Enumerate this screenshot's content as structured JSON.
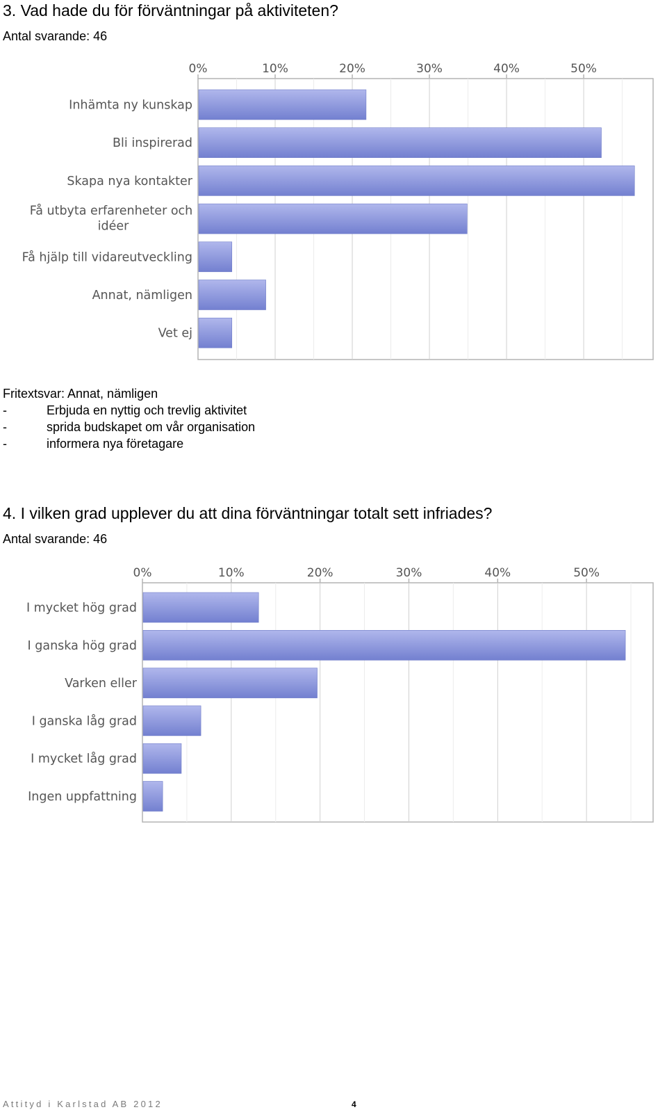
{
  "questions": [
    {
      "title": "3. Vad hade du för förväntningar på aktiviteten?",
      "respondents": "Antal svarande: 46"
    },
    {
      "title": "4. I vilken grad upplever du att dina förväntningar totalt sett infriades?",
      "respondents": "Antal svarande: 46"
    }
  ],
  "free_text": {
    "heading": "Fritextsvar: Annat, nämligen",
    "items": [
      {
        "dash": "-",
        "text": "Erbjuda en nyttig och trevlig aktivitet"
      },
      {
        "dash": "-",
        "text": "sprida budskapet om vår organisation"
      },
      {
        "dash": "-",
        "text": "informera nya företagare"
      }
    ]
  },
  "footer": {
    "company": "Attityd i Karlstad AB 2012",
    "page_number": "4"
  },
  "colors": {
    "bar_top": "#b0b7ec",
    "bar_bottom": "#7380d0",
    "grid": "#dcdcdc",
    "axis": "#b4b4b4",
    "label": "#555555"
  },
  "chart_data": [
    {
      "type": "bar",
      "orientation": "horizontal",
      "categories": [
        "Inhämta ny kunskap",
        "Bli inspirerad",
        "Skapa nya kontakter",
        "Få utbyta erfarenheter och idéer",
        "Få hjälp till vidareutveckling",
        "Annat, nämligen",
        "Vet ej"
      ],
      "values": [
        21.7,
        52.2,
        56.5,
        34.8,
        4.3,
        8.7,
        4.3
      ],
      "unit": "%",
      "xlim": [
        0,
        59
      ],
      "ticks": [
        "0%",
        "10%",
        "20%",
        "30%",
        "40%",
        "50%"
      ],
      "tick_values": [
        0,
        10,
        20,
        30,
        40,
        50
      ],
      "grid": true,
      "legend": "none"
    },
    {
      "type": "bar",
      "orientation": "horizontal",
      "categories": [
        "I mycket hög grad",
        "I ganska hög grad",
        "Varken eller",
        "I ganska låg grad",
        "I mycket låg grad",
        "Ingen uppfattning"
      ],
      "values": [
        13.0,
        54.3,
        19.6,
        6.5,
        4.3,
        2.2
      ],
      "unit": "%",
      "xlim": [
        0,
        57.5
      ],
      "ticks": [
        "0%",
        "10%",
        "20%",
        "30%",
        "40%",
        "50%"
      ],
      "tick_values": [
        0,
        10,
        20,
        30,
        40,
        50
      ],
      "grid": true,
      "legend": "none"
    }
  ]
}
